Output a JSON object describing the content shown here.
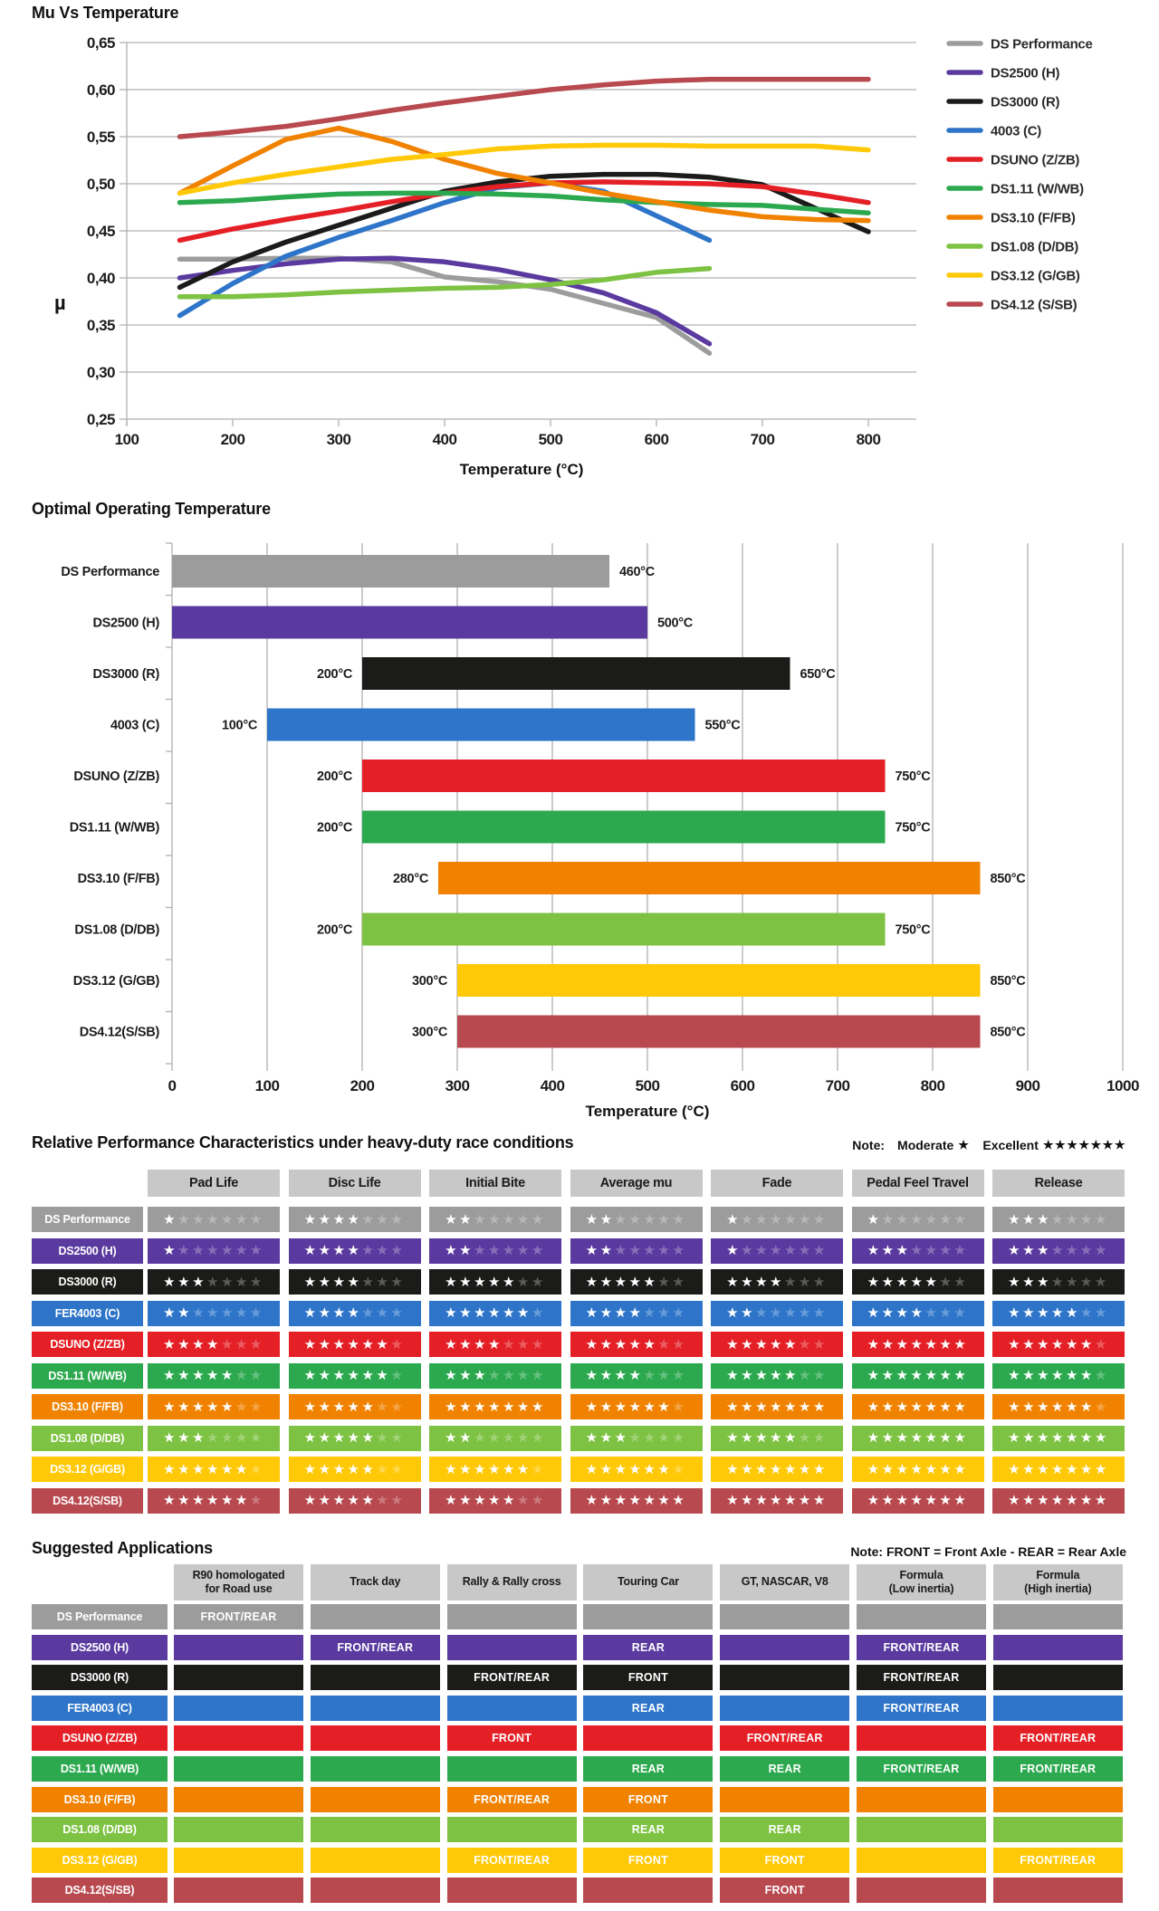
{
  "chart_data": [
    {
      "type": "line",
      "title": "Mu Vs Temperature",
      "xlabel": "Temperature (°C)",
      "ylabel": "µ",
      "xlim": [
        100,
        850
      ],
      "ylim": [
        0.25,
        0.65
      ],
      "grid": "horizontal",
      "legend_position": "right",
      "x_ticks": [
        100,
        200,
        300,
        400,
        500,
        600,
        700,
        800
      ],
      "y_ticks": [
        {
          "value": 0.65,
          "label": "0,65"
        },
        {
          "value": 0.6,
          "label": "0,60"
        },
        {
          "value": 0.55,
          "label": "0,55"
        },
        {
          "value": 0.5,
          "label": "0,50"
        },
        {
          "value": 0.45,
          "label": "0,45"
        },
        {
          "value": 0.4,
          "label": "0,40"
        },
        {
          "value": 0.35,
          "label": "0,35"
        },
        {
          "value": 0.3,
          "label": "0,30"
        },
        {
          "value": 0.25,
          "label": "0,25"
        }
      ],
      "series": [
        {
          "name": "DS Performance",
          "color": "#9c9c9c",
          "points": [
            [
              150,
              0.42
            ],
            [
              200,
              0.42
            ],
            [
              250,
              0.421
            ],
            [
              300,
              0.421
            ],
            [
              350,
              0.417
            ],
            [
              400,
              0.401
            ],
            [
              450,
              0.396
            ],
            [
              500,
              0.388
            ],
            [
              550,
              0.373
            ],
            [
              600,
              0.358
            ],
            [
              650,
              0.32
            ]
          ]
        },
        {
          "name": "DS2500 (H)",
          "color": "#5a3a9f",
          "points": [
            [
              150,
              0.4
            ],
            [
              200,
              0.408
            ],
            [
              250,
              0.415
            ],
            [
              300,
              0.42
            ],
            [
              350,
              0.421
            ],
            [
              400,
              0.417
            ],
            [
              450,
              0.409
            ],
            [
              500,
              0.398
            ],
            [
              550,
              0.384
            ],
            [
              600,
              0.363
            ],
            [
              650,
              0.33
            ]
          ]
        },
        {
          "name": "DS3000 (R)",
          "color": "#1b1b19",
          "points": [
            [
              150,
              0.39
            ],
            [
              200,
              0.417
            ],
            [
              250,
              0.438
            ],
            [
              300,
              0.456
            ],
            [
              350,
              0.474
            ],
            [
              400,
              0.492
            ],
            [
              450,
              0.502
            ],
            [
              500,
              0.508
            ],
            [
              550,
              0.51
            ],
            [
              600,
              0.51
            ],
            [
              650,
              0.507
            ],
            [
              700,
              0.499
            ],
            [
              750,
              0.474
            ],
            [
              800,
              0.449
            ]
          ]
        },
        {
          "name": "4003 (C)",
          "color": "#2e75c9",
          "points": [
            [
              150,
              0.36
            ],
            [
              200,
              0.394
            ],
            [
              250,
              0.423
            ],
            [
              300,
              0.443
            ],
            [
              350,
              0.461
            ],
            [
              400,
              0.48
            ],
            [
              450,
              0.496
            ],
            [
              500,
              0.501
            ],
            [
              550,
              0.492
            ],
            [
              600,
              0.466
            ],
            [
              650,
              0.44
            ]
          ]
        },
        {
          "name": "DSUNO (Z/ZB)",
          "color": "#e41f26",
          "points": [
            [
              150,
              0.44
            ],
            [
              200,
              0.452
            ],
            [
              250,
              0.462
            ],
            [
              300,
              0.471
            ],
            [
              350,
              0.481
            ],
            [
              400,
              0.49
            ],
            [
              450,
              0.497
            ],
            [
              500,
              0.501
            ],
            [
              550,
              0.502
            ],
            [
              600,
              0.501
            ],
            [
              650,
              0.5
            ],
            [
              700,
              0.497
            ],
            [
              750,
              0.489
            ],
            [
              800,
              0.48
            ]
          ]
        },
        {
          "name": "DS1.11 (W/WB)",
          "color": "#2ca94f",
          "points": [
            [
              150,
              0.48
            ],
            [
              200,
              0.482
            ],
            [
              250,
              0.486
            ],
            [
              300,
              0.489
            ],
            [
              350,
              0.49
            ],
            [
              400,
              0.49
            ],
            [
              450,
              0.489
            ],
            [
              500,
              0.487
            ],
            [
              550,
              0.483
            ],
            [
              600,
              0.48
            ],
            [
              650,
              0.478
            ],
            [
              700,
              0.477
            ],
            [
              750,
              0.473
            ],
            [
              800,
              0.469
            ]
          ]
        },
        {
          "name": "DS3.10 (F/FB)",
          "color": "#f08200",
          "points": [
            [
              150,
              0.49
            ],
            [
              200,
              0.519
            ],
            [
              250,
              0.547
            ],
            [
              300,
              0.559
            ],
            [
              350,
              0.545
            ],
            [
              400,
              0.526
            ],
            [
              450,
              0.511
            ],
            [
              500,
              0.501
            ],
            [
              550,
              0.49
            ],
            [
              600,
              0.481
            ],
            [
              650,
              0.472
            ],
            [
              700,
              0.465
            ],
            [
              750,
              0.462
            ],
            [
              800,
              0.461
            ]
          ]
        },
        {
          "name": "DS1.08 (D/DB)",
          "color": "#7dc242",
          "points": [
            [
              150,
              0.38
            ],
            [
              200,
              0.38
            ],
            [
              250,
              0.382
            ],
            [
              300,
              0.385
            ],
            [
              350,
              0.387
            ],
            [
              400,
              0.389
            ],
            [
              450,
              0.39
            ],
            [
              500,
              0.393
            ],
            [
              550,
              0.398
            ],
            [
              600,
              0.406
            ],
            [
              650,
              0.41
            ]
          ]
        },
        {
          "name": "DS3.12 (G/GB)",
          "color": "#ffc907",
          "points": [
            [
              150,
              0.49
            ],
            [
              200,
              0.501
            ],
            [
              250,
              0.51
            ],
            [
              300,
              0.518
            ],
            [
              350,
              0.526
            ],
            [
              400,
              0.531
            ],
            [
              450,
              0.537
            ],
            [
              500,
              0.54
            ],
            [
              550,
              0.541
            ],
            [
              600,
              0.541
            ],
            [
              650,
              0.54
            ],
            [
              700,
              0.54
            ],
            [
              750,
              0.54
            ],
            [
              800,
              0.536
            ]
          ]
        },
        {
          "name": "DS4.12 (S/SB)",
          "color": "#b7494f",
          "points": [
            [
              150,
              0.55
            ],
            [
              200,
              0.555
            ],
            [
              250,
              0.561
            ],
            [
              300,
              0.569
            ],
            [
              350,
              0.578
            ],
            [
              400,
              0.586
            ],
            [
              450,
              0.593
            ],
            [
              500,
              0.6
            ],
            [
              550,
              0.605
            ],
            [
              600,
              0.609
            ],
            [
              650,
              0.611
            ],
            [
              700,
              0.611
            ],
            [
              750,
              0.611
            ],
            [
              800,
              0.611
            ]
          ]
        }
      ]
    },
    {
      "type": "bar",
      "orientation": "horizontal",
      "title": "Optimal Operating Temperature",
      "xlabel": "Temperature (°C)",
      "xlim": [
        0,
        1000
      ],
      "grid": "vertical",
      "x_ticks": [
        0,
        100,
        200,
        300,
        400,
        500,
        600,
        700,
        800,
        900,
        1000
      ],
      "bars": [
        {
          "label": "DS Performance",
          "color": "#9c9c9c",
          "start": 0,
          "end": 460,
          "start_label": "",
          "end_label": "460°C"
        },
        {
          "label": "DS2500 (H)",
          "color": "#5a3a9f",
          "start": 0,
          "end": 500,
          "start_label": "",
          "end_label": "500°C"
        },
        {
          "label": "DS3000 (R)",
          "color": "#1b1b19",
          "start": 200,
          "end": 650,
          "start_label": "200°C",
          "end_label": "650°C"
        },
        {
          "label": "4003 (C)",
          "color": "#2e75c9",
          "start": 100,
          "end": 550,
          "start_label": "100°C",
          "end_label": "550°C"
        },
        {
          "label": "DSUNO (Z/ZB)",
          "color": "#e41f26",
          "start": 200,
          "end": 750,
          "start_label": "200°C",
          "end_label": "750°C"
        },
        {
          "label": "DS1.11 (W/WB)",
          "color": "#2ca94f",
          "start": 200,
          "end": 750,
          "start_label": "200°C",
          "end_label": "750°C"
        },
        {
          "label": "DS3.10 (F/FB)",
          "color": "#f08200",
          "start": 280,
          "end": 850,
          "start_label": "280°C",
          "end_label": "850°C"
        },
        {
          "label": "DS1.08 (D/DB)",
          "color": "#7dc242",
          "start": 200,
          "end": 750,
          "start_label": "200°C",
          "end_label": "750°C"
        },
        {
          "label": "DS3.12 (G/GB)",
          "color": "#ffc907",
          "start": 300,
          "end": 850,
          "start_label": "300°C",
          "end_label": "850°C"
        },
        {
          "label": "DS4.12(S/SB)",
          "color": "#b7494f",
          "start": 300,
          "end": 850,
          "start_label": "300°C",
          "end_label": "850°C"
        }
      ]
    },
    {
      "type": "table",
      "title": "Relative Performance Characteristics under heavy-duty race conditions",
      "note": {
        "label": "Note:",
        "moderate": "Moderate",
        "moderate_stars": "★",
        "excellent": "Excellent",
        "excellent_stars": "★★★★★★★"
      },
      "max_stars": 7,
      "columns": [
        "Pad Life",
        "Disc Life",
        "Initial Bite",
        "Average mu",
        "Fade",
        "Pedal Feel Travel",
        "Release"
      ],
      "rows": [
        {
          "label": "DS Performance",
          "color": "#9c9c9c",
          "ratings": [
            1,
            4,
            2,
            2,
            1,
            1,
            3
          ]
        },
        {
          "label": "DS2500 (H)",
          "color": "#5a3a9f",
          "ratings": [
            1,
            4,
            2,
            2,
            1,
            3,
            3
          ]
        },
        {
          "label": "DS3000 (R)",
          "color": "#1b1b19",
          "ratings": [
            3,
            4,
            5,
            5,
            4,
            5,
            3
          ]
        },
        {
          "label": "FER4003 (C)",
          "color": "#2e75c9",
          "ratings": [
            2,
            4,
            6,
            4,
            2,
            4,
            5
          ]
        },
        {
          "label": "DSUNO (Z/ZB)",
          "color": "#e41f26",
          "ratings": [
            4,
            6,
            4,
            5,
            5,
            7,
            6
          ]
        },
        {
          "label": "DS1.11 (W/WB)",
          "color": "#2ca94f",
          "ratings": [
            5,
            6,
            3,
            4,
            5,
            7,
            6
          ]
        },
        {
          "label": "DS3.10 (F/FB)",
          "color": "#f08200",
          "ratings": [
            5,
            5,
            7,
            6,
            7,
            7,
            6
          ]
        },
        {
          "label": "DS1.08 (D/DB)",
          "color": "#7dc242",
          "ratings": [
            3,
            5,
            2,
            3,
            5,
            7,
            7
          ]
        },
        {
          "label": "DS3.12 (G/GB)",
          "color": "#ffc907",
          "ratings": [
            6,
            5,
            6,
            6,
            7,
            7,
            7
          ]
        },
        {
          "label": "DS4.12(S/SB)",
          "color": "#b7494f",
          "ratings": [
            6,
            5,
            5,
            7,
            7,
            7,
            7
          ]
        }
      ]
    },
    {
      "type": "table",
      "title": "Suggested Applications",
      "note": "Note: FRONT = Front Axle - REAR = Rear Axle",
      "columns": [
        "R90 homologated\nfor Road use",
        "Track day",
        "Rally & Rally cross",
        "Touring Car",
        "GT, NASCAR, V8",
        "Formula\n(Low inertia)",
        "Formula\n(High inertia)"
      ],
      "rows": [
        {
          "label": "DS Performance",
          "color": "#9c9c9c",
          "cells": [
            "FRONT/REAR",
            "",
            "",
            "",
            "",
            "",
            ""
          ]
        },
        {
          "label": "DS2500 (H)",
          "color": "#5a3a9f",
          "cells": [
            "",
            "FRONT/REAR",
            "",
            "REAR",
            "",
            "FRONT/REAR",
            ""
          ]
        },
        {
          "label": "DS3000 (R)",
          "color": "#1b1b19",
          "cells": [
            "",
            "",
            "FRONT/REAR",
            "FRONT",
            "",
            "FRONT/REAR",
            ""
          ]
        },
        {
          "label": "FER4003 (C)",
          "color": "#2e75c9",
          "cells": [
            "",
            "",
            "",
            "REAR",
            "",
            "FRONT/REAR",
            ""
          ]
        },
        {
          "label": "DSUNO (Z/ZB)",
          "color": "#e41f26",
          "cells": [
            "",
            "",
            "FRONT",
            "",
            "FRONT/REAR",
            "",
            "FRONT/REAR"
          ]
        },
        {
          "label": "DS1.11 (W/WB)",
          "color": "#2ca94f",
          "cells": [
            "",
            "",
            "",
            "REAR",
            "REAR",
            "FRONT/REAR",
            "FRONT/REAR"
          ]
        },
        {
          "label": "DS3.10 (F/FB)",
          "color": "#f08200",
          "cells": [
            "",
            "",
            "FRONT/REAR",
            "FRONT",
            "",
            "",
            ""
          ]
        },
        {
          "label": "DS1.08 (D/DB)",
          "color": "#7dc242",
          "cells": [
            "",
            "",
            "",
            "REAR",
            "REAR",
            "",
            ""
          ]
        },
        {
          "label": "DS3.12 (G/GB)",
          "color": "#ffc907",
          "cells": [
            "",
            "",
            "FRONT/REAR",
            "FRONT",
            "FRONT",
            "",
            "FRONT/REAR"
          ]
        },
        {
          "label": "DS4.12(S/SB)",
          "color": "#b7494f",
          "cells": [
            "",
            "",
            "",
            "",
            "FRONT",
            "",
            ""
          ]
        }
      ]
    }
  ]
}
